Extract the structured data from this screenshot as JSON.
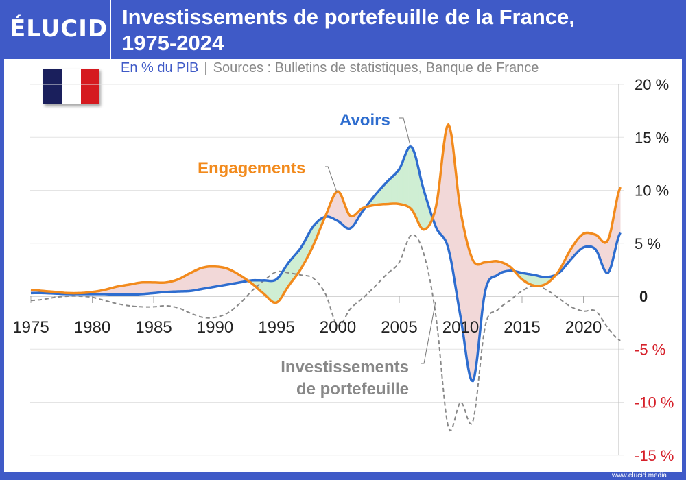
{
  "header": {
    "logo": "ÉLUCID",
    "title_line1": "Investissements de portefeuille de la France,",
    "title_line2": "1975-2024"
  },
  "subtitle": {
    "unit": "En % du PIB",
    "separator": "|",
    "source": "Sources : Bulletins de statistiques, Banque de France"
  },
  "flag": {
    "colors": [
      "#1a1f5c",
      "#ffffff",
      "#d51a1f"
    ]
  },
  "footer": {
    "url": "www.elucid.media"
  },
  "colors": {
    "frame": "#3f5ac7",
    "avoirs": "#2e6dcf",
    "engagements": "#f28a1c",
    "net": "#888888",
    "fill_positive": "#cfeed3",
    "fill_negative": "#f2d8d8",
    "negative_label": "#d6202a"
  },
  "chart_data": {
    "type": "line",
    "x": [
      1975,
      1976,
      1977,
      1978,
      1979,
      1980,
      1981,
      1982,
      1983,
      1984,
      1985,
      1986,
      1987,
      1988,
      1989,
      1990,
      1991,
      1992,
      1993,
      1994,
      1995,
      1996,
      1997,
      1998,
      1999,
      2000,
      2001,
      2002,
      2003,
      2004,
      2005,
      2006,
      2007,
      2008,
      2009,
      2010,
      2011,
      2012,
      2013,
      2014,
      2015,
      2016,
      2017,
      2018,
      2019,
      2020,
      2021,
      2022,
      2023
    ],
    "series": [
      {
        "name": "Avoirs",
        "style": "solid",
        "values": [
          0.3,
          0.3,
          0.25,
          0.2,
          0.2,
          0.2,
          0.2,
          0.15,
          0.15,
          0.2,
          0.3,
          0.4,
          0.45,
          0.5,
          0.7,
          0.9,
          1.1,
          1.3,
          1.5,
          1.5,
          1.6,
          3.2,
          4.6,
          6.6,
          7.5,
          7.1,
          6.4,
          8.0,
          9.5,
          10.8,
          12.0,
          14.1,
          10.0,
          6.5,
          4.5,
          -2.0,
          -8.0,
          0.5,
          2.0,
          2.4,
          2.2,
          2.0,
          1.8,
          2.2,
          3.5,
          4.6,
          4.4,
          2.2,
          6.0
        ]
      },
      {
        "name": "Engagements",
        "style": "solid",
        "values": [
          0.6,
          0.5,
          0.4,
          0.3,
          0.3,
          0.4,
          0.6,
          0.9,
          1.1,
          1.3,
          1.3,
          1.3,
          1.6,
          2.2,
          2.7,
          2.8,
          2.6,
          2.0,
          1.2,
          0.2,
          -0.6,
          1.0,
          2.6,
          4.8,
          7.6,
          9.9,
          7.6,
          8.3,
          8.6,
          8.7,
          8.7,
          8.2,
          6.3,
          8.5,
          16.2,
          8.0,
          3.4,
          3.2,
          3.3,
          2.8,
          1.6,
          1.0,
          1.2,
          2.4,
          4.5,
          5.9,
          5.8,
          5.3,
          10.3
        ]
      },
      {
        "name": "Investissements de portefeuille",
        "style": "dashed",
        "values": [
          -0.4,
          -0.3,
          -0.1,
          0,
          0,
          -0.1,
          -0.4,
          -0.7,
          -0.9,
          -1.0,
          -1.0,
          -0.9,
          -1.1,
          -1.6,
          -2.0,
          -2.0,
          -1.6,
          -0.7,
          0.5,
          1.5,
          2.3,
          2.2,
          2.0,
          1.7,
          0.2,
          -2.8,
          -1.2,
          -0.2,
          0.9,
          2.1,
          3.2,
          5.8,
          4.0,
          -2.0,
          -12.4,
          -10.0,
          -11.8,
          -2.8,
          -1.3,
          -0.4,
          0.5,
          1.0,
          0.6,
          -0.2,
          -1.0,
          -1.4,
          -1.4,
          -3.0,
          -4.2
        ]
      }
    ],
    "annotations": {
      "avoirs": "Avoirs",
      "engagements": "Engagements",
      "net_line1": "Investissements",
      "net_line2": "de portefeuille"
    },
    "x_ticks": [
      "1975",
      "1980",
      "1985",
      "1990",
      "1995",
      "2000",
      "2005",
      "2010",
      "2015",
      "2020"
    ],
    "y_ticks": [
      {
        "v": 20,
        "label": "20 %"
      },
      {
        "v": 15,
        "label": "15 %"
      },
      {
        "v": 10,
        "label": "10 %"
      },
      {
        "v": 5,
        "label": "5 %"
      },
      {
        "v": 0,
        "label": "0"
      },
      {
        "v": -5,
        "label": "-5 %"
      },
      {
        "v": -10,
        "label": "-10 %"
      },
      {
        "v": -15,
        "label": "-15 %"
      }
    ],
    "ylim": [
      -15,
      20
    ],
    "xlim": [
      1975,
      2023
    ],
    "grid": true,
    "y_axis_position": "right"
  }
}
